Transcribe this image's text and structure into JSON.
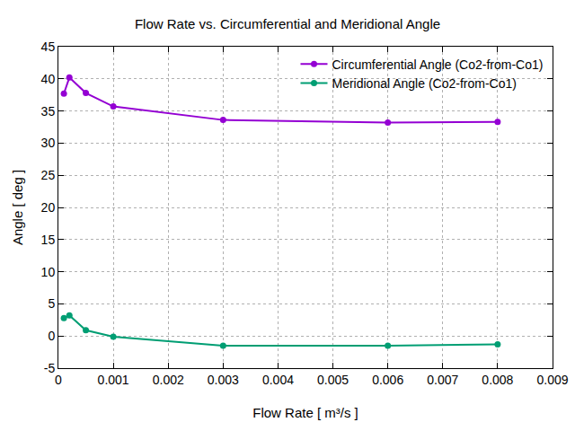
{
  "chart_data": {
    "type": "line",
    "title": "Flow Rate vs. Circumferential and Meridional Angle",
    "x_label": "Flow Rate [ m³/s ]",
    "y_label": "Angle [ deg ]",
    "x": [
      0.0001,
      0.0002,
      0.0005,
      0.001,
      0.003,
      0.006,
      0.008
    ],
    "series": [
      {
        "name": "Circumferential Angle (Co2-from-Co1)",
        "color": "#9400d3",
        "values": [
          37.7,
          40.2,
          37.8,
          35.7,
          33.6,
          33.2,
          33.3
        ]
      },
      {
        "name": "Meridional Angle (Co2-from-Co1)",
        "color": "#009e73",
        "values": [
          2.8,
          3.2,
          0.9,
          -0.1,
          -1.5,
          -1.5,
          -1.3
        ]
      }
    ],
    "xlim": [
      0,
      0.009
    ],
    "xticks": [
      0,
      0.001,
      0.002,
      0.003,
      0.004,
      0.005,
      0.006,
      0.007,
      0.008,
      0.009
    ],
    "ylim": [
      -5,
      45
    ],
    "yticks": [
      -5,
      0,
      5,
      10,
      15,
      20,
      25,
      30,
      35,
      40,
      45
    ],
    "grid": true,
    "legend": "top right",
    "marker": "circle",
    "line_style": "solid"
  }
}
